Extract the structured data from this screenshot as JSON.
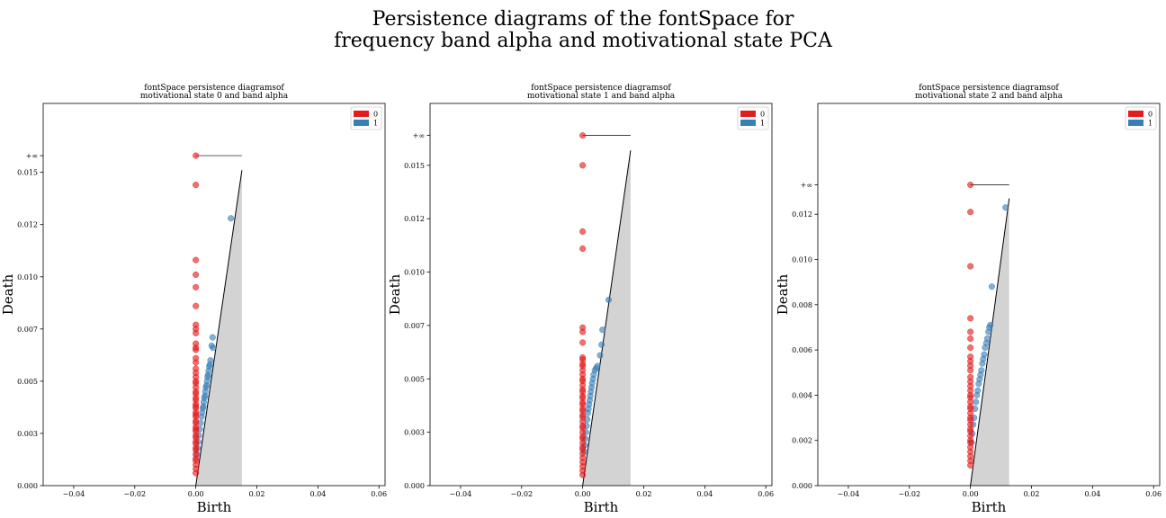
{
  "figure": {
    "title_line1": "Persistence diagrams of the fontSpace for",
    "title_line2": "frequency band alpha and motivational state PCA"
  },
  "colors": {
    "h0": "#e41a1c",
    "h1": "#377eb8",
    "diagonal_fill": "#d3d3d3"
  },
  "chart_data": [
    {
      "type": "scatter",
      "title_line1": "fontSpace persistence diagramsof",
      "title_line2": "motivational state 0 and band alpha",
      "xlabel": "Birth",
      "ylabel": "Death",
      "xlim": [
        -0.05,
        0.062
      ],
      "ylim": [
        0,
        0.0183
      ],
      "xticks": [
        -0.04,
        -0.02,
        0.0,
        0.02,
        0.04,
        0.06
      ],
      "xtick_labels": [
        "−0.04",
        "−0.02",
        "0.00",
        "0.02",
        "0.04",
        "0.06"
      ],
      "yticks": [
        0.0,
        0.0025,
        0.005,
        0.0075,
        0.01,
        0.0125,
        0.015
      ],
      "ytick_labels": [
        "0.000",
        "0.003",
        "0.005",
        "0.007",
        "0.010",
        "0.012",
        "0.015"
      ],
      "infinity_label": "+∞",
      "infinity_y": 0.0158,
      "diagonal_max": 0.0151,
      "legend": [
        "0",
        "1"
      ],
      "legend_position": "top-right",
      "series": [
        {
          "name": "0",
          "points": [
            [
              0,
              0.0158
            ],
            [
              0,
              0.0144
            ],
            [
              0,
              0.0108
            ],
            [
              0,
              0.0101
            ],
            [
              0,
              0.0095
            ],
            [
              0,
              0.0086
            ],
            [
              0,
              0.0077
            ],
            [
              0,
              0.0075
            ],
            [
              0,
              0.0073
            ],
            [
              0,
              0.0068
            ],
            [
              0,
              0.0066
            ],
            [
              0,
              0.0065
            ],
            [
              0,
              0.0061
            ],
            [
              0,
              0.0059
            ],
            [
              0,
              0.0056
            ],
            [
              0,
              0.0054
            ],
            [
              0,
              0.0052
            ],
            [
              0,
              0.005
            ],
            [
              0,
              0.0049
            ],
            [
              0,
              0.0047
            ],
            [
              0,
              0.0045
            ],
            [
              0,
              0.0044
            ],
            [
              0,
              0.0042
            ],
            [
              0,
              0.0041
            ],
            [
              0,
              0.0039
            ],
            [
              0,
              0.0038
            ],
            [
              0,
              0.0037
            ],
            [
              0,
              0.0035
            ],
            [
              0,
              0.0034
            ],
            [
              0,
              0.0033
            ],
            [
              0,
              0.0031
            ],
            [
              0,
              0.003
            ],
            [
              0,
              0.0028
            ],
            [
              0,
              0.0027
            ],
            [
              0,
              0.0026
            ],
            [
              0,
              0.0024
            ],
            [
              0,
              0.0023
            ],
            [
              0,
              0.0021
            ],
            [
              0,
              0.002
            ],
            [
              0,
              0.0018
            ],
            [
              0,
              0.0017
            ],
            [
              0,
              0.0015
            ],
            [
              0,
              0.0013
            ],
            [
              0,
              0.0012
            ],
            [
              0,
              0.001
            ],
            [
              0,
              0.0008
            ],
            [
              0,
              0.0006
            ]
          ]
        },
        {
          "name": "1",
          "points": [
            [
              0.0115,
              0.0128
            ],
            [
              0.0055,
              0.0071
            ],
            [
              0.0052,
              0.0067
            ],
            [
              0.0056,
              0.0066
            ],
            [
              0.0048,
              0.006
            ],
            [
              0.0046,
              0.0058
            ],
            [
              0.0044,
              0.0057
            ],
            [
              0.0042,
              0.0055
            ],
            [
              0.004,
              0.0053
            ],
            [
              0.0039,
              0.0052
            ],
            [
              0.0037,
              0.005
            ],
            [
              0.0035,
              0.0048
            ],
            [
              0.0033,
              0.0047
            ],
            [
              0.0031,
              0.0045
            ],
            [
              0.003,
              0.0043
            ],
            [
              0.0028,
              0.0042
            ],
            [
              0.0026,
              0.004
            ],
            [
              0.0025,
              0.0038
            ],
            [
              0.0023,
              0.0037
            ],
            [
              0.0021,
              0.0035
            ],
            [
              0.0019,
              0.0033
            ],
            [
              0.0016,
              0.003
            ],
            [
              0.0013,
              0.0027
            ],
            [
              0.001,
              0.0024
            ],
            [
              0.0008,
              0.0021
            ],
            [
              0.0006,
              0.0018
            ],
            [
              0.0004,
              0.0015
            ]
          ]
        }
      ]
    },
    {
      "type": "scatter",
      "title_line1": "fontSpace persistence diagramsof",
      "title_line2": "motivational state 1 and band alpha",
      "xlabel": "Birth",
      "ylabel": "Death",
      "xlim": [
        -0.05,
        0.062
      ],
      "ylim": [
        0,
        0.0179
      ],
      "xticks": [
        -0.04,
        -0.02,
        0.0,
        0.02,
        0.04,
        0.06
      ],
      "xtick_labels": [
        "−0.04",
        "−0.02",
        "0.00",
        "0.02",
        "0.04",
        "0.06"
      ],
      "yticks": [
        0.0,
        0.0025,
        0.005,
        0.0075,
        0.01,
        0.0125,
        0.015
      ],
      "ytick_labels": [
        "0.000",
        "0.003",
        "0.005",
        "0.007",
        "0.010",
        "0.012",
        "0.015"
      ],
      "infinity_label": "+∞",
      "infinity_y": 0.0164,
      "diagonal_max": 0.0157,
      "legend": [
        "0",
        "1"
      ],
      "legend_position": "top-right",
      "series": [
        {
          "name": "0",
          "points": [
            [
              0,
              0.0164
            ],
            [
              0,
              0.015
            ],
            [
              0,
              0.0119
            ],
            [
              0,
              0.0111
            ],
            [
              0,
              0.0074
            ],
            [
              0,
              0.0072
            ],
            [
              0,
              0.0067
            ],
            [
              0,
              0.006
            ],
            [
              0,
              0.0059
            ],
            [
              0,
              0.0057
            ],
            [
              0,
              0.0056
            ],
            [
              0,
              0.0054
            ],
            [
              0,
              0.0052
            ],
            [
              0,
              0.005
            ],
            [
              0,
              0.0049
            ],
            [
              0,
              0.0047
            ],
            [
              0,
              0.0045
            ],
            [
              0,
              0.0044
            ],
            [
              0,
              0.0042
            ],
            [
              0,
              0.0041
            ],
            [
              0,
              0.0039
            ],
            [
              0,
              0.0038
            ],
            [
              0,
              0.0036
            ],
            [
              0,
              0.0035
            ],
            [
              0,
              0.0033
            ],
            [
              0,
              0.0032
            ],
            [
              0,
              0.003
            ],
            [
              0,
              0.0028
            ],
            [
              0,
              0.0027
            ],
            [
              0,
              0.0025
            ],
            [
              0,
              0.0023
            ],
            [
              0,
              0.0022
            ],
            [
              0,
              0.002
            ],
            [
              0,
              0.0018
            ],
            [
              0,
              0.0017
            ],
            [
              0,
              0.0015
            ],
            [
              0,
              0.0013
            ],
            [
              0,
              0.0011
            ],
            [
              0,
              0.0009
            ],
            [
              0,
              0.0007
            ],
            [
              0,
              0.0005
            ]
          ]
        },
        {
          "name": "1",
          "points": [
            [
              0.0085,
              0.0087
            ],
            [
              0.0065,
              0.0073
            ],
            [
              0.0062,
              0.0066
            ],
            [
              0.0057,
              0.0061
            ],
            [
              0.0048,
              0.0056
            ],
            [
              0.0044,
              0.0055
            ],
            [
              0.004,
              0.0054
            ],
            [
              0.0036,
              0.0052
            ],
            [
              0.0034,
              0.005
            ],
            [
              0.0031,
              0.0048
            ],
            [
              0.0029,
              0.0046
            ],
            [
              0.0027,
              0.0044
            ],
            [
              0.0025,
              0.0042
            ],
            [
              0.0023,
              0.004
            ],
            [
              0.0021,
              0.0038
            ],
            [
              0.0019,
              0.0036
            ],
            [
              0.0017,
              0.0034
            ],
            [
              0.0015,
              0.0031
            ],
            [
              0.0013,
              0.0028
            ],
            [
              0.0011,
              0.0025
            ],
            [
              0.0009,
              0.0022
            ],
            [
              0.0007,
              0.0019
            ],
            [
              0.0005,
              0.0016
            ]
          ]
        }
      ]
    },
    {
      "type": "scatter",
      "title_line1": "fontSpace persistence diagramsof",
      "title_line2": "motivational state 2 and band alpha",
      "xlabel": "Birth",
      "ylabel": "Death",
      "xlim": [
        -0.05,
        0.062
      ],
      "ylim": [
        0,
        0.0169
      ],
      "xticks": [
        -0.04,
        -0.02,
        0.0,
        0.02,
        0.04,
        0.06
      ],
      "xtick_labels": [
        "−0.04",
        "−0.02",
        "0.00",
        "0.02",
        "0.04",
        "0.06"
      ],
      "yticks": [
        0.0,
        0.002,
        0.004,
        0.006,
        0.008,
        0.01,
        0.012
      ],
      "ytick_labels": [
        "0.000",
        "0.002",
        "0.004",
        "0.006",
        "0.008",
        "0.010",
        "0.012"
      ],
      "infinity_label": "+∞",
      "infinity_y": 0.0133,
      "diagonal_max": 0.0127,
      "legend": [
        "0",
        "1"
      ],
      "legend_position": "top-right",
      "series": [
        {
          "name": "0",
          "points": [
            [
              0,
              0.0133
            ],
            [
              0,
              0.0121
            ],
            [
              0,
              0.0097
            ],
            [
              0,
              0.0074
            ],
            [
              0,
              0.0068
            ],
            [
              0,
              0.0065
            ],
            [
              0,
              0.0061
            ],
            [
              0,
              0.0057
            ],
            [
              0,
              0.0055
            ],
            [
              0,
              0.0053
            ],
            [
              0,
              0.0051
            ],
            [
              0,
              0.0048
            ],
            [
              0,
              0.0046
            ],
            [
              0,
              0.0044
            ],
            [
              0,
              0.0042
            ],
            [
              0,
              0.004
            ],
            [
              0,
              0.0039
            ],
            [
              0,
              0.0037
            ],
            [
              0,
              0.0035
            ],
            [
              0,
              0.0034
            ],
            [
              0,
              0.0032
            ],
            [
              0,
              0.003
            ],
            [
              0,
              0.0029
            ],
            [
              0,
              0.0027
            ],
            [
              0,
              0.0025
            ],
            [
              0,
              0.0024
            ],
            [
              0,
              0.0022
            ],
            [
              0,
              0.002
            ],
            [
              0,
              0.0019
            ],
            [
              0,
              0.0017
            ],
            [
              0,
              0.0015
            ],
            [
              0,
              0.0013
            ],
            [
              0,
              0.0011
            ],
            [
              0,
              0.0009
            ]
          ]
        },
        {
          "name": "1",
          "points": [
            [
              0.0115,
              0.0123
            ],
            [
              0.007,
              0.0088
            ],
            [
              0.0065,
              0.0071
            ],
            [
              0.0062,
              0.007
            ],
            [
              0.0059,
              0.0068
            ],
            [
              0.0055,
              0.0065
            ],
            [
              0.0052,
              0.0063
            ],
            [
              0.0048,
              0.0061
            ],
            [
              0.0045,
              0.0058
            ],
            [
              0.0042,
              0.0056
            ],
            [
              0.0039,
              0.0054
            ],
            [
              0.0036,
              0.0051
            ],
            [
              0.0033,
              0.0049
            ],
            [
              0.003,
              0.0047
            ],
            [
              0.0027,
              0.0045
            ],
            [
              0.0024,
              0.0042
            ],
            [
              0.0021,
              0.004
            ],
            [
              0.0018,
              0.0037
            ],
            [
              0.0015,
              0.0034
            ],
            [
              0.0012,
              0.003
            ],
            [
              0.0009,
              0.0027
            ],
            [
              0.0006,
              0.0023
            ],
            [
              0.0004,
              0.0019
            ]
          ]
        }
      ]
    }
  ]
}
